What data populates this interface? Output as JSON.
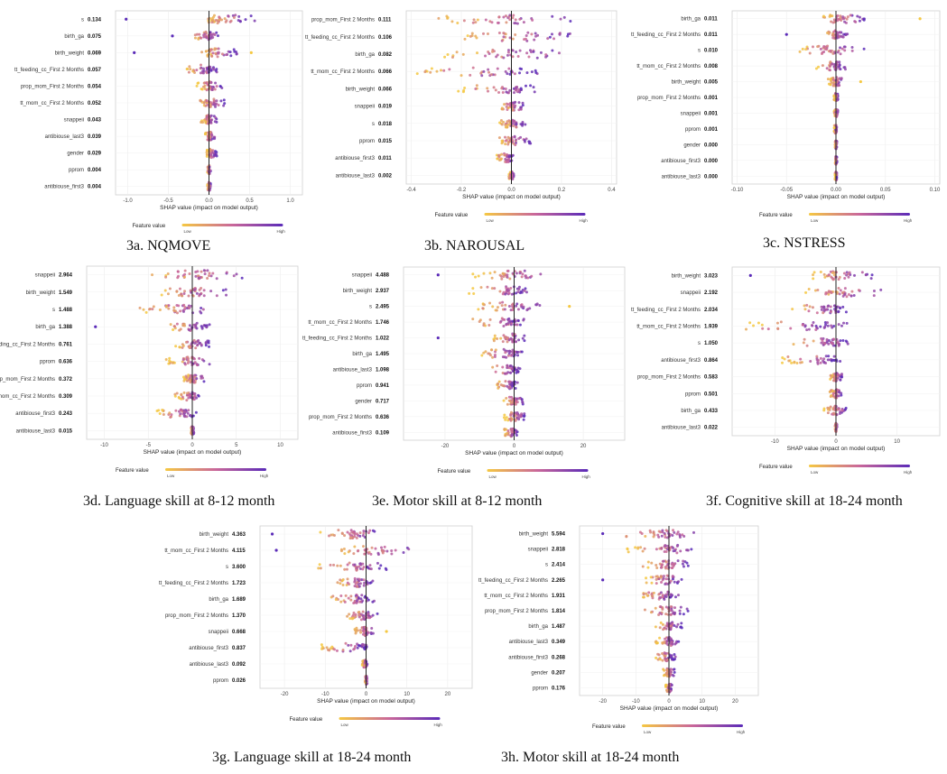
{
  "legend": {
    "title": "Feature value",
    "low": "Low",
    "high": "High"
  },
  "colors": {
    "low": "#f5c842",
    "mid": "#c9679a",
    "high": "#5b2bb8"
  },
  "chart_data": [
    {
      "id": "3a",
      "type": "scatter",
      "caption": "3a. NQMOVE",
      "xlabel": "SHAP value (impact on model output)",
      "xlim": [
        -1.15,
        1.15
      ],
      "ticks": [
        -1.0,
        -0.5,
        0.0,
        0.5,
        1.0
      ],
      "tick_labels": [
        "-1.0",
        "-0.5",
        "0.0",
        "0.5",
        "1.0"
      ],
      "features": [
        {
          "name": "s",
          "value": "0.134",
          "min": -0.08,
          "max": 0.58,
          "outliers": [
            -1.02
          ]
        },
        {
          "name": "birth_ga",
          "value": "0.075",
          "min": -0.2,
          "max": 0.12,
          "outliers": [
            -0.45
          ]
        },
        {
          "name": "birth_weight",
          "value": "0.069",
          "min": -0.1,
          "max": 0.35,
          "outliers": [
            -0.92,
            0.52
          ]
        },
        {
          "name": "tt_feeding_cc_First 2 Months",
          "value": "0.057",
          "min": -0.3,
          "max": 0.1,
          "outliers": []
        },
        {
          "name": "prop_mom_First 2 Months",
          "value": "0.054",
          "min": -0.15,
          "max": 0.18,
          "outliers": []
        },
        {
          "name": "tt_mom_cc_First 2 Months",
          "value": "0.052",
          "min": -0.12,
          "max": 0.2,
          "outliers": []
        },
        {
          "name": "snappeii",
          "value": "0.043",
          "min": -0.1,
          "max": 0.1,
          "outliers": []
        },
        {
          "name": "antibiouse_last3",
          "value": "0.039",
          "min": -0.05,
          "max": 0.08,
          "outliers": []
        },
        {
          "name": "gender",
          "value": "0.029",
          "min": -0.04,
          "max": 0.1,
          "outliers": []
        },
        {
          "name": "pprom",
          "value": "0.004",
          "min": -0.02,
          "max": 0.02,
          "outliers": []
        },
        {
          "name": "antibiouse_first3",
          "value": "0.004",
          "min": -0.02,
          "max": 0.02,
          "outliers": []
        }
      ]
    },
    {
      "id": "3b",
      "type": "scatter",
      "caption": "3b. NAROUSAL",
      "xlabel": "SHAP value (impact on model output)",
      "xlim": [
        -0.42,
        0.42
      ],
      "ticks": [
        -0.4,
        -0.2,
        0.0,
        0.2,
        0.4
      ],
      "tick_labels": [
        "-0.4",
        "-0.2",
        "0.0",
        "0.2",
        "0.4"
      ],
      "features": [
        {
          "name": "prop_mom_First 2 Months",
          "value": "0.111",
          "min": -0.3,
          "max": 0.25,
          "outliers": []
        },
        {
          "name": "tt_feeding_cc_First 2 Months",
          "value": "0.106",
          "min": -0.22,
          "max": 0.28,
          "outliers": []
        },
        {
          "name": "birth_ga",
          "value": "0.082",
          "min": -0.3,
          "max": 0.28,
          "outliers": []
        },
        {
          "name": "tt_mom_cc_First 2 Months",
          "value": "0.066",
          "min": -0.38,
          "max": 0.12,
          "outliers": []
        },
        {
          "name": "birth_weight",
          "value": "0.066",
          "min": -0.22,
          "max": 0.1,
          "outliers": []
        },
        {
          "name": "snappeii",
          "value": "0.019",
          "min": -0.04,
          "max": 0.05,
          "outliers": []
        },
        {
          "name": "s",
          "value": "0.018",
          "min": -0.05,
          "max": 0.06,
          "outliers": []
        },
        {
          "name": "pprom",
          "value": "0.015",
          "min": -0.06,
          "max": 0.08,
          "outliers": []
        },
        {
          "name": "antibiouse_first3",
          "value": "0.011",
          "min": -0.06,
          "max": 0.01,
          "outliers": []
        },
        {
          "name": "antibiouse_last3",
          "value": "0.002",
          "min": -0.01,
          "max": 0.01,
          "outliers": []
        }
      ]
    },
    {
      "id": "3c",
      "type": "scatter",
      "caption": "3c. NSTRESS",
      "xlabel": "SHAP value (impact on model output)",
      "xlim": [
        -0.105,
        0.105
      ],
      "ticks": [
        -0.1,
        -0.05,
        0.0,
        0.05,
        0.1
      ],
      "tick_labels": [
        "-0.10",
        "-0.05",
        "0.00",
        "0.05",
        "0.10"
      ],
      "features": [
        {
          "name": "birth_ga",
          "value": "0.011",
          "min": -0.015,
          "max": 0.03,
          "outliers": [
            0.085
          ]
        },
        {
          "name": "tt_feeding_cc_First 2 Months",
          "value": "0.011",
          "min": -0.01,
          "max": 0.012,
          "outliers": [
            -0.05
          ]
        },
        {
          "name": "s",
          "value": "0.010",
          "min": -0.04,
          "max": 0.03,
          "outliers": []
        },
        {
          "name": "tt_mom_cc_First 2 Months",
          "value": "0.008",
          "min": -0.02,
          "max": 0.012,
          "outliers": []
        },
        {
          "name": "birth_weight",
          "value": "0.005",
          "min": -0.008,
          "max": 0.008,
          "outliers": [
            0.025
          ]
        },
        {
          "name": "prop_mom_First 2 Months",
          "value": "0.001",
          "min": -0.002,
          "max": 0.002,
          "outliers": []
        },
        {
          "name": "snappeii",
          "value": "0.001",
          "min": -0.002,
          "max": 0.002,
          "outliers": []
        },
        {
          "name": "pprom",
          "value": "0.001",
          "min": -0.002,
          "max": 0.001,
          "outliers": []
        },
        {
          "name": "gender",
          "value": "0.000",
          "min": -0.001,
          "max": 0.001,
          "outliers": []
        },
        {
          "name": "antibiouse_first3",
          "value": "0.000",
          "min": -0.001,
          "max": 0.001,
          "outliers": []
        },
        {
          "name": "antibiouse_last3",
          "value": "0.000",
          "min": -0.001,
          "max": 0.001,
          "outliers": []
        }
      ]
    },
    {
      "id": "3d",
      "type": "scatter",
      "caption": "3d. Language skill at 8-12 month",
      "xlabel": "SHAP value (impact on model output)",
      "xlim": [
        -12,
        12
      ],
      "ticks": [
        -10,
        -5,
        0,
        5,
        10
      ],
      "tick_labels": [
        "-10",
        "-5",
        "0",
        "5",
        "10"
      ],
      "features": [
        {
          "name": "snappeii",
          "value": "2.964",
          "min": -5,
          "max": 7,
          "outliers": []
        },
        {
          "name": "birth_weight",
          "value": "1.549",
          "min": -4,
          "max": 4,
          "outliers": []
        },
        {
          "name": "s",
          "value": "1.488",
          "min": -6,
          "max": 3,
          "outliers": []
        },
        {
          "name": "birth_ga",
          "value": "1.388",
          "min": -3,
          "max": 2,
          "outliers": [
            -11
          ]
        },
        {
          "name": "tt_feeding_cc_First 2 Months",
          "value": "0.761",
          "min": -2,
          "max": 2,
          "outliers": []
        },
        {
          "name": "pprom",
          "value": "0.636",
          "min": -3,
          "max": 2,
          "outliers": []
        },
        {
          "name": "prop_mom_First 2 Months",
          "value": "0.372",
          "min": -1,
          "max": 1.5,
          "outliers": []
        },
        {
          "name": "tt_mom_cc_First 2 Months",
          "value": "0.309",
          "min": -2,
          "max": 1,
          "outliers": []
        },
        {
          "name": "antibiouse_first3",
          "value": "0.243",
          "min": -4,
          "max": 0.5,
          "outliers": []
        },
        {
          "name": "antibiouse_last3",
          "value": "0.015",
          "min": -0.2,
          "max": 0.2,
          "outliers": []
        }
      ]
    },
    {
      "id": "3e",
      "type": "scatter",
      "caption": "3e. Motor skill at 8-12 month",
      "xlabel": "SHAP value (impact on model output)",
      "xlim": [
        -32,
        32
      ],
      "ticks": [
        -20,
        0,
        20
      ],
      "tick_labels": [
        "-20",
        "0",
        "20"
      ],
      "features": [
        {
          "name": "snappeii",
          "value": "4.488",
          "min": -12,
          "max": 12,
          "outliers": [
            -22
          ]
        },
        {
          "name": "birth_weight",
          "value": "2.937",
          "min": -14,
          "max": 6,
          "outliers": []
        },
        {
          "name": "s",
          "value": "2.495",
          "min": -12,
          "max": 8,
          "outliers": [
            16
          ]
        },
        {
          "name": "tt_mom_cc_First 2 Months",
          "value": "1.746",
          "min": -12,
          "max": 4,
          "outliers": []
        },
        {
          "name": "tt_feeding_cc_First 2 Months",
          "value": "1.022",
          "min": -6,
          "max": 3,
          "outliers": [
            -22
          ]
        },
        {
          "name": "birth_ga",
          "value": "1.495",
          "min": -10,
          "max": 3,
          "outliers": []
        },
        {
          "name": "antibiouse_last3",
          "value": "1.098",
          "min": -8,
          "max": 2,
          "outliers": []
        },
        {
          "name": "pprom",
          "value": "0.941",
          "min": -5,
          "max": 1,
          "outliers": []
        },
        {
          "name": "gender",
          "value": "0.717",
          "min": -3,
          "max": 3,
          "outliers": []
        },
        {
          "name": "prop_mom_First 2 Months",
          "value": "0.636",
          "min": -3,
          "max": 3,
          "outliers": []
        },
        {
          "name": "antibiouse_first3",
          "value": "0.109",
          "min": -3,
          "max": 1,
          "outliers": []
        }
      ]
    },
    {
      "id": "3f",
      "type": "scatter",
      "caption": "3f. Cognitive skill at 18-24 month",
      "xlabel": "SHAP value (impact on model output)",
      "xlim": [
        -17,
        17
      ],
      "ticks": [
        -10,
        0,
        10
      ],
      "tick_labels": [
        "-10",
        "0",
        "10"
      ],
      "features": [
        {
          "name": "birth_weight",
          "value": "3.023",
          "min": -4,
          "max": 6,
          "outliers": [
            -14
          ]
        },
        {
          "name": "snappeii",
          "value": "2.192",
          "min": -5,
          "max": 9,
          "outliers": []
        },
        {
          "name": "tt_feeding_cc_First 2 Months",
          "value": "2.034",
          "min": -8,
          "max": 2,
          "outliers": []
        },
        {
          "name": "tt_mom_cc_First 2 Months",
          "value": "1.939",
          "min": -16,
          "max": 2,
          "outliers": []
        },
        {
          "name": "s",
          "value": "1.050",
          "min": -7,
          "max": 2,
          "outliers": []
        },
        {
          "name": "antibiouse_first3",
          "value": "0.864",
          "min": -9,
          "max": 1,
          "outliers": []
        },
        {
          "name": "prop_mom_First 2 Months",
          "value": "0.583",
          "min": -1,
          "max": 1,
          "outliers": []
        },
        {
          "name": "pprom",
          "value": "0.501",
          "min": -1,
          "max": 1,
          "outliers": []
        },
        {
          "name": "birth_ga",
          "value": "0.433",
          "min": -2,
          "max": 2,
          "outliers": []
        },
        {
          "name": "antibiouse_last3",
          "value": "0.022",
          "min": -0.2,
          "max": 0.2,
          "outliers": []
        }
      ]
    },
    {
      "id": "3g",
      "type": "scatter",
      "caption": "3g. Language skill at 18-24 month",
      "xlabel": "SHAP value (impact on model output)",
      "xlim": [
        -26,
        26
      ],
      "ticks": [
        -20,
        -10,
        0,
        10,
        20
      ],
      "tick_labels": [
        "-20",
        "-10",
        "0",
        "10",
        "20"
      ],
      "features": [
        {
          "name": "birth_weight",
          "value": "4.363",
          "min": -12,
          "max": 5,
          "outliers": [
            -23
          ]
        },
        {
          "name": "tt_mom_cc_First 2 Months",
          "value": "4.115",
          "min": -6,
          "max": 12,
          "outliers": [
            -22
          ]
        },
        {
          "name": "s",
          "value": "3.600",
          "min": -12,
          "max": 5,
          "outliers": []
        },
        {
          "name": "tt_feeding_cc_First 2 Months",
          "value": "1.723",
          "min": -8,
          "max": 2,
          "outliers": []
        },
        {
          "name": "birth_ga",
          "value": "1.689",
          "min": -9,
          "max": 2,
          "outliers": []
        },
        {
          "name": "prop_mom_First 2 Months",
          "value": "1.370",
          "min": -5,
          "max": 3,
          "outliers": []
        },
        {
          "name": "snappeii",
          "value": "0.668",
          "min": -3,
          "max": 2,
          "outliers": [
            5
          ]
        },
        {
          "name": "antibiouse_first3",
          "value": "0.837",
          "min": -11,
          "max": 0.5,
          "outliers": []
        },
        {
          "name": "antibiouse_last3",
          "value": "0.092",
          "min": -1,
          "max": 0.3,
          "outliers": []
        },
        {
          "name": "pprom",
          "value": "0.026",
          "min": -0.3,
          "max": 0.3,
          "outliers": []
        }
      ]
    },
    {
      "id": "3h",
      "type": "scatter",
      "caption": "3h. Motor skill at 18-24 month",
      "xlabel": "SHAP value (impact on model output)",
      "xlim": [
        -27,
        27
      ],
      "ticks": [
        -20,
        -10,
        0,
        10,
        20
      ],
      "tick_labels": [
        "-20",
        "-10",
        "0",
        "10",
        "20"
      ],
      "features": [
        {
          "name": "birth_weight",
          "value": "5.594",
          "min": -14,
          "max": 10,
          "outliers": [
            -20
          ]
        },
        {
          "name": "snappeii",
          "value": "2.818",
          "min": -13,
          "max": 8,
          "outliers": []
        },
        {
          "name": "s",
          "value": "2.414",
          "min": -8,
          "max": 6,
          "outliers": []
        },
        {
          "name": "tt_feeding_cc_First 2 Months",
          "value": "2.265",
          "min": -7,
          "max": 4,
          "outliers": [
            -20
          ]
        },
        {
          "name": "tt_mom_cc_First 2 Months",
          "value": "1.931",
          "min": -9,
          "max": 3,
          "outliers": []
        },
        {
          "name": "prop_mom_First 2 Months",
          "value": "1.814",
          "min": -8,
          "max": 6,
          "outliers": []
        },
        {
          "name": "birth_ga",
          "value": "1.487",
          "min": -4,
          "max": 4,
          "outliers": []
        },
        {
          "name": "antibiouse_last3",
          "value": "0.349",
          "min": -4,
          "max": 3,
          "outliers": []
        },
        {
          "name": "antibiouse_first3",
          "value": "0.268",
          "min": -4,
          "max": 2,
          "outliers": []
        },
        {
          "name": "gender",
          "value": "0.207",
          "min": -2,
          "max": 2,
          "outliers": []
        },
        {
          "name": "pprom",
          "value": "0.176",
          "min": -1,
          "max": 1,
          "outliers": []
        }
      ]
    }
  ]
}
